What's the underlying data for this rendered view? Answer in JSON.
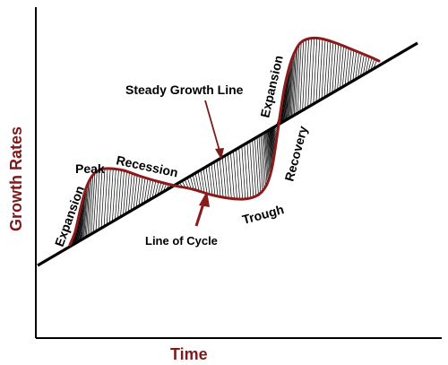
{
  "axes": {
    "x_title": "Time",
    "y_title": "Growth Rates"
  },
  "labels": {
    "steady_growth_line": "Steady Growth Line",
    "line_of_cycle": "Line of Cycle",
    "expansion_left": "Expansion",
    "peak": "Peak",
    "recession": "Recession",
    "trough": "Trough",
    "recovery": "Recovery",
    "expansion_right": "Expansion"
  },
  "colors": {
    "axis": "#000000",
    "trend_line": "#000000",
    "cycle_line": "#8b1a1a",
    "hatch": "#000000",
    "axis_title": "#7b1c1c"
  }
}
